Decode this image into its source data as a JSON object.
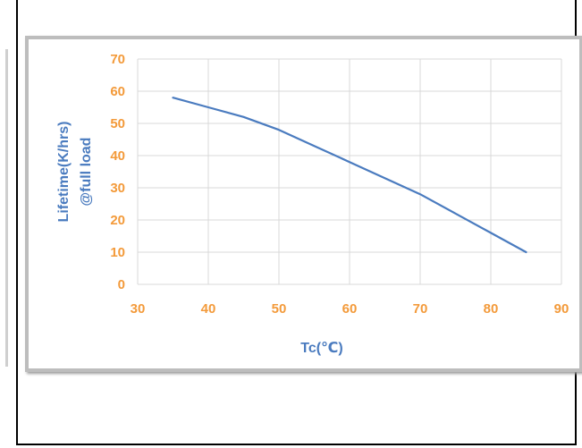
{
  "chart_data": {
    "type": "line",
    "title": "",
    "xlabel": "Tc(℃)",
    "ylabel_lines": [
      "Lifetime(K/hrs)",
      "@full load"
    ],
    "xlim": [
      30,
      90
    ],
    "ylim": [
      0,
      70
    ],
    "x_ticks": [
      30,
      40,
      50,
      60,
      70,
      80,
      90
    ],
    "y_ticks": [
      0,
      10,
      20,
      30,
      40,
      50,
      60,
      70
    ],
    "grid": true,
    "colors": {
      "series": "#4a7bbf",
      "ticks": "#f39a3a",
      "axis_titles": "#4a7bbf",
      "grid": "#d9d9d9"
    },
    "series": [
      {
        "x": [
          35,
          40,
          45,
          50,
          55,
          60,
          65,
          70,
          75,
          80,
          85
        ],
        "y": [
          58,
          55,
          52,
          48,
          43,
          38,
          33,
          28,
          22,
          16,
          10
        ]
      }
    ]
  }
}
